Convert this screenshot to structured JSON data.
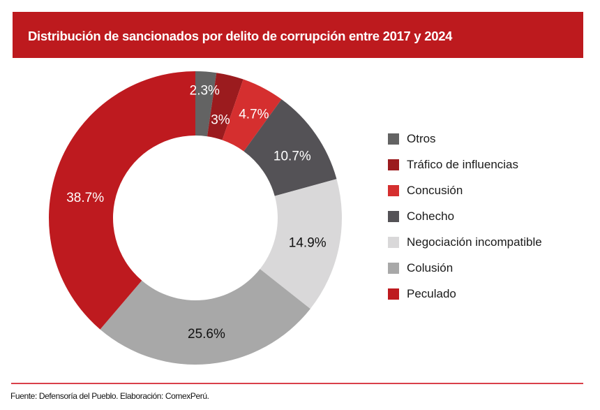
{
  "header": {
    "title": "Distribución de sancionados por delito de corrupción entre 2017 y 2024",
    "background": "#bd1a1e"
  },
  "chart_data": {
    "type": "pie",
    "subtype": "donut",
    "title": "Distribución de sancionados por delito de corrupción entre 2017 y 2024",
    "unit": "%",
    "start": "top, clockwise",
    "legend_position": "right",
    "slices": [
      {
        "label": "Otros",
        "value": 2.3,
        "display": "2.3%",
        "color": "#636363",
        "text_color": "#ffffff"
      },
      {
        "label": "Tráfico de influencias",
        "value": 3.0,
        "display": "3%",
        "color": "#9b1b1e",
        "text_color": "#ffffff"
      },
      {
        "label": "Concusión",
        "value": 4.7,
        "display": "4.7%",
        "color": "#d52f2f",
        "text_color": "#ffffff"
      },
      {
        "label": "Cohecho",
        "value": 10.7,
        "display": "10.7%",
        "color": "#545256",
        "text_color": "#ffffff"
      },
      {
        "label": "Negociación incompatible",
        "value": 14.9,
        "display": "14.9%",
        "color": "#d9d8d9",
        "text_color": "#111111"
      },
      {
        "label": "Colusión",
        "value": 25.6,
        "display": "25.6%",
        "color": "#a8a8a8",
        "text_color": "#111111"
      },
      {
        "label": "Peculado",
        "value": 38.7,
        "display": "38.7%",
        "color": "#be1a1f",
        "text_color": "#ffffff"
      }
    ]
  },
  "legend": {
    "items": [
      {
        "label": "Otros",
        "color": "#636363"
      },
      {
        "label": "Tráfico de influencias",
        "color": "#9b1b1e"
      },
      {
        "label": "Concusión",
        "color": "#d52f2f"
      },
      {
        "label": "Cohecho",
        "color": "#545256"
      },
      {
        "label": "Negociación incompatible",
        "color": "#d9d8d9"
      },
      {
        "label": "Colusión",
        "color": "#a8a8a8"
      },
      {
        "label": "Peculado",
        "color": "#be1a1f"
      }
    ]
  },
  "footer": {
    "source": "Fuente: Defensoría del Pueblo. Elaboración: ComexPerú.",
    "rule_color": "#d9404a"
  }
}
